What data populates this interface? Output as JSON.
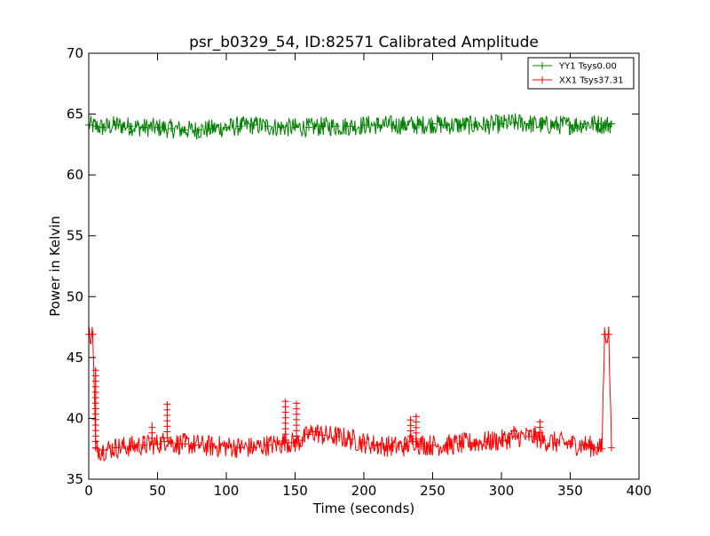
{
  "chart_data": {
    "type": "line",
    "title": "psr_b0329_54, ID:82571 Calibrated Amplitude",
    "xlabel": "Time (seconds)",
    "ylabel": "Power in Kelvin",
    "xlim": [
      0,
      400
    ],
    "ylim": [
      35,
      70
    ],
    "xticks": [
      0,
      50,
      100,
      150,
      200,
      250,
      300,
      350,
      400
    ],
    "yticks": [
      35,
      40,
      45,
      50,
      55,
      60,
      65,
      70
    ],
    "grid": false,
    "legend_position": "top-right",
    "series": [
      {
        "name": "YY1 Tsys0.00",
        "color": "#008000",
        "marker": "+",
        "x": [
          0,
          5,
          10,
          20,
          30,
          40,
          50,
          60,
          70,
          80,
          90,
          100,
          110,
          120,
          130,
          140,
          150,
          160,
          170,
          180,
          190,
          200,
          210,
          220,
          230,
          240,
          250,
          260,
          270,
          280,
          290,
          300,
          310,
          320,
          330,
          340,
          350,
          360,
          370,
          375,
          380
        ],
        "y": [
          64.1,
          64.0,
          63.9,
          64.1,
          64.0,
          63.9,
          63.9,
          63.8,
          63.7,
          63.7,
          63.8,
          63.9,
          64.0,
          64.1,
          64.0,
          63.9,
          63.9,
          63.9,
          64.0,
          64.0,
          64.0,
          64.1,
          64.1,
          64.1,
          64.1,
          64.1,
          64.2,
          64.1,
          64.1,
          64.1,
          64.1,
          64.2,
          64.3,
          64.2,
          64.1,
          64.1,
          64.1,
          64.2,
          64.2,
          64.1,
          64.2
        ],
        "spread": 0.8
      },
      {
        "name": "XX1 Tsys37.31",
        "color": "#ff0000",
        "marker": "+",
        "x": [
          0,
          3,
          5,
          6,
          10,
          20,
          30,
          40,
          50,
          55,
          57,
          60,
          65,
          70,
          80,
          90,
          100,
          110,
          120,
          130,
          140,
          143,
          145,
          150,
          155,
          160,
          165,
          170,
          180,
          190,
          200,
          210,
          220,
          230,
          235,
          238,
          240,
          250,
          260,
          270,
          280,
          290,
          300,
          310,
          320,
          325,
          330,
          340,
          350,
          360,
          370,
          373,
          375,
          378,
          380
        ],
        "y": [
          46.9,
          46.9,
          37.6,
          37.5,
          37.4,
          37.6,
          37.7,
          37.8,
          37.9,
          38.1,
          38.4,
          38.0,
          37.9,
          37.9,
          37.8,
          37.7,
          37.7,
          37.6,
          37.6,
          37.8,
          37.9,
          38.2,
          38.0,
          38.0,
          38.2,
          38.7,
          38.9,
          38.6,
          38.5,
          38.3,
          38.0,
          37.8,
          37.7,
          37.7,
          38.1,
          38.3,
          37.9,
          37.8,
          37.8,
          37.9,
          38.0,
          38.1,
          38.2,
          38.5,
          38.5,
          38.5,
          38.2,
          38.0,
          37.9,
          37.8,
          37.6,
          37.5,
          46.9,
          46.9,
          37.6
        ],
        "spread": 0.9,
        "spikes": [
          {
            "x": 46,
            "y": 39.7
          },
          {
            "x": 57,
            "y": 41.4
          },
          {
            "x": 143,
            "y": 41.5
          },
          {
            "x": 151,
            "y": 41.3
          },
          {
            "x": 234,
            "y": 40.2
          },
          {
            "x": 238,
            "y": 40.4
          },
          {
            "x": 309,
            "y": 39.4
          },
          {
            "x": 328,
            "y": 39.9
          },
          {
            "x": 5,
            "y": 44.2
          }
        ]
      }
    ]
  }
}
